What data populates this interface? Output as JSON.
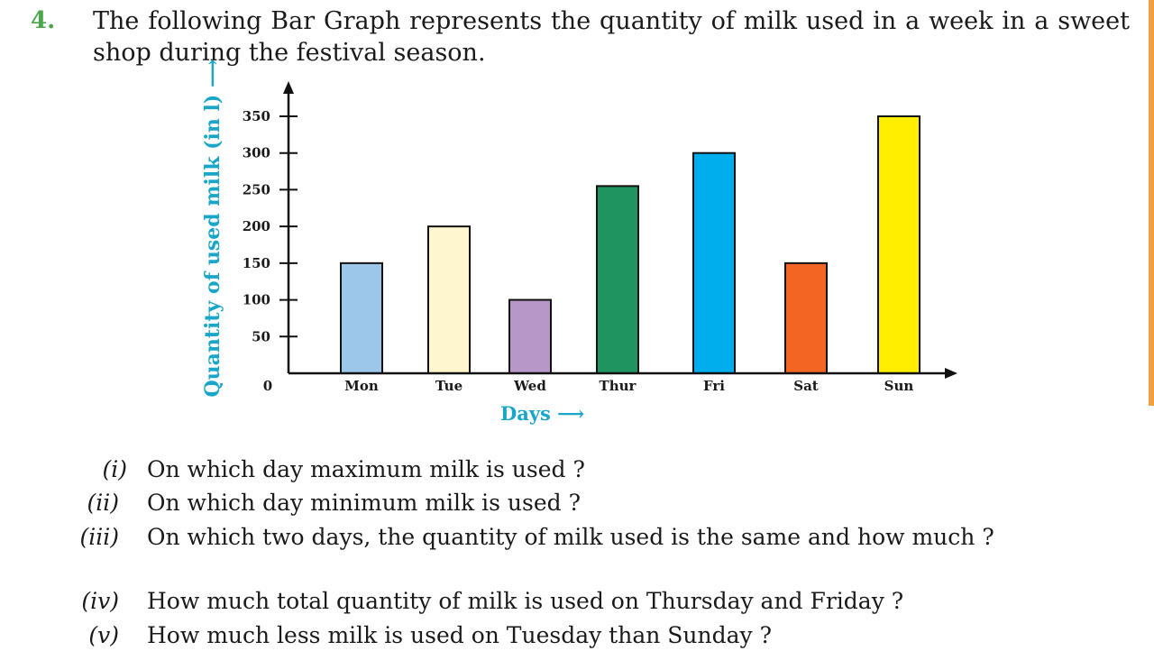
{
  "question": {
    "number": "4.",
    "text": "The following Bar Graph represents the quantity of milk used in a week in a sweet shop during the festival season."
  },
  "chart_data": {
    "type": "bar",
    "categories": [
      "Mon",
      "Tue",
      "Wed",
      "Thur",
      "Fri",
      "Sat",
      "Sun"
    ],
    "values": [
      150,
      200,
      100,
      255,
      300,
      150,
      350
    ],
    "colors": [
      "#9cc6ea",
      "#fdf6cf",
      "#b697c7",
      "#1f9360",
      "#00aeee",
      "#f26522",
      "#ffee00"
    ],
    "ylabel": "Quantity of used milk (in l) ⟶",
    "xlabel": "Days ⟶",
    "origin_label": "0",
    "yticks": [
      50,
      100,
      150,
      200,
      250,
      300,
      350
    ],
    "ylim": [
      0,
      350
    ],
    "grid": false
  },
  "sub_questions": [
    {
      "label": "(i)",
      "text": "On  which day maximum milk is used ?"
    },
    {
      "label": "(ii)",
      "text": "On which day minimum milk is used ?"
    },
    {
      "label": "(iii)",
      "text": "On which two days, the quantity of milk used is the same and how much ?"
    },
    {
      "label": "(iv)",
      "text": "How much total quantity of milk is used on Thursday and Friday ?"
    },
    {
      "label": "(v)",
      "text": "How much less milk is used on Tuesday than Sunday ?"
    }
  ]
}
